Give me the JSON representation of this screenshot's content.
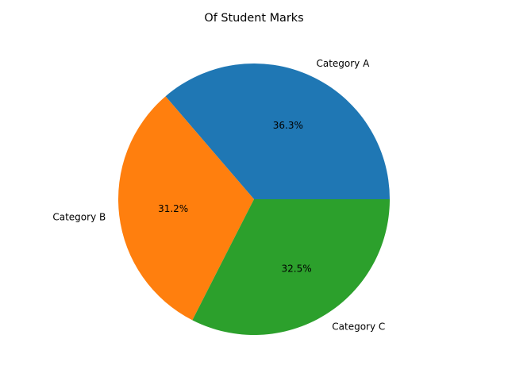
{
  "chart_data": {
    "type": "pie",
    "title": "Of Student Marks",
    "categories": [
      "Category A",
      "Category B",
      "Category C"
    ],
    "values": [
      36.3,
      31.2,
      32.5
    ],
    "percent_labels": [
      "36.3%",
      "31.2%",
      "32.5%"
    ],
    "colors": [
      "#1f77b4",
      "#ff7f0e",
      "#2ca02c"
    ],
    "start_angle_deg": 0,
    "direction": "counterclockwise"
  }
}
